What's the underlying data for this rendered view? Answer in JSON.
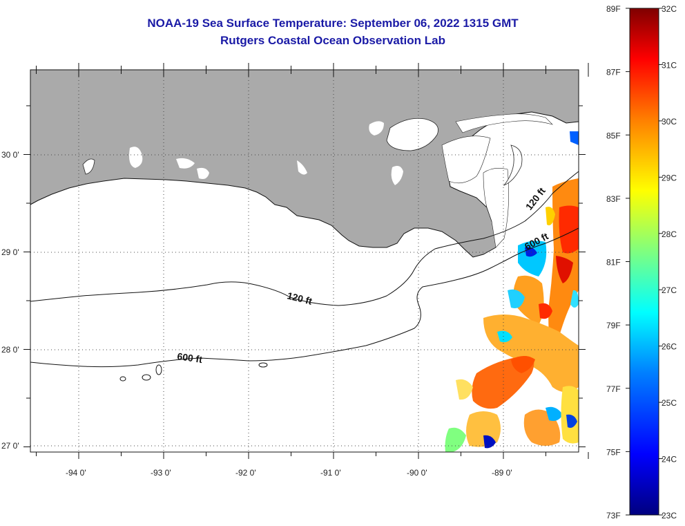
{
  "header": {
    "title": "NOAA-19 Sea Surface Temperature:  September 06, 2022 1315 GMT",
    "subtitle": "Rutgers Coastal Ocean Observation Lab"
  },
  "map": {
    "region": "Northern Gulf of Mexico / Louisiana coast",
    "longitude_labels": [
      "-94 0'",
      "-93 0'",
      "-92 0'",
      "-91 0'",
      "-90 0'",
      "-89 0'"
    ],
    "latitude_labels": [
      "30 0'",
      "29 0'",
      "28 0'",
      "27 0'"
    ],
    "contours": [
      {
        "label": "120 ft"
      },
      {
        "label": "600 ft"
      },
      {
        "label": "120 ft"
      },
      {
        "label": "600 ft"
      }
    ],
    "colors": {
      "land": "#aaaaaa",
      "ocean_nodata": "#ffffff",
      "contour": "#111111",
      "grid": "#555555"
    }
  },
  "colorbar": {
    "fahrenheit_labels": [
      "89F",
      "87F",
      "85F",
      "83F",
      "81F",
      "79F",
      "77F",
      "75F",
      "73F"
    ],
    "celsius_labels": [
      "32C",
      "31C",
      "30C",
      "29C",
      "28C",
      "27C",
      "26C",
      "25C",
      "24C",
      "23C"
    ],
    "range_c": [
      23,
      32
    ],
    "palette": [
      "#00007f",
      "#0000ff",
      "#007fff",
      "#00ffff",
      "#7fff7f",
      "#ffff00",
      "#ff7f00",
      "#ff0000",
      "#7f0000"
    ]
  }
}
